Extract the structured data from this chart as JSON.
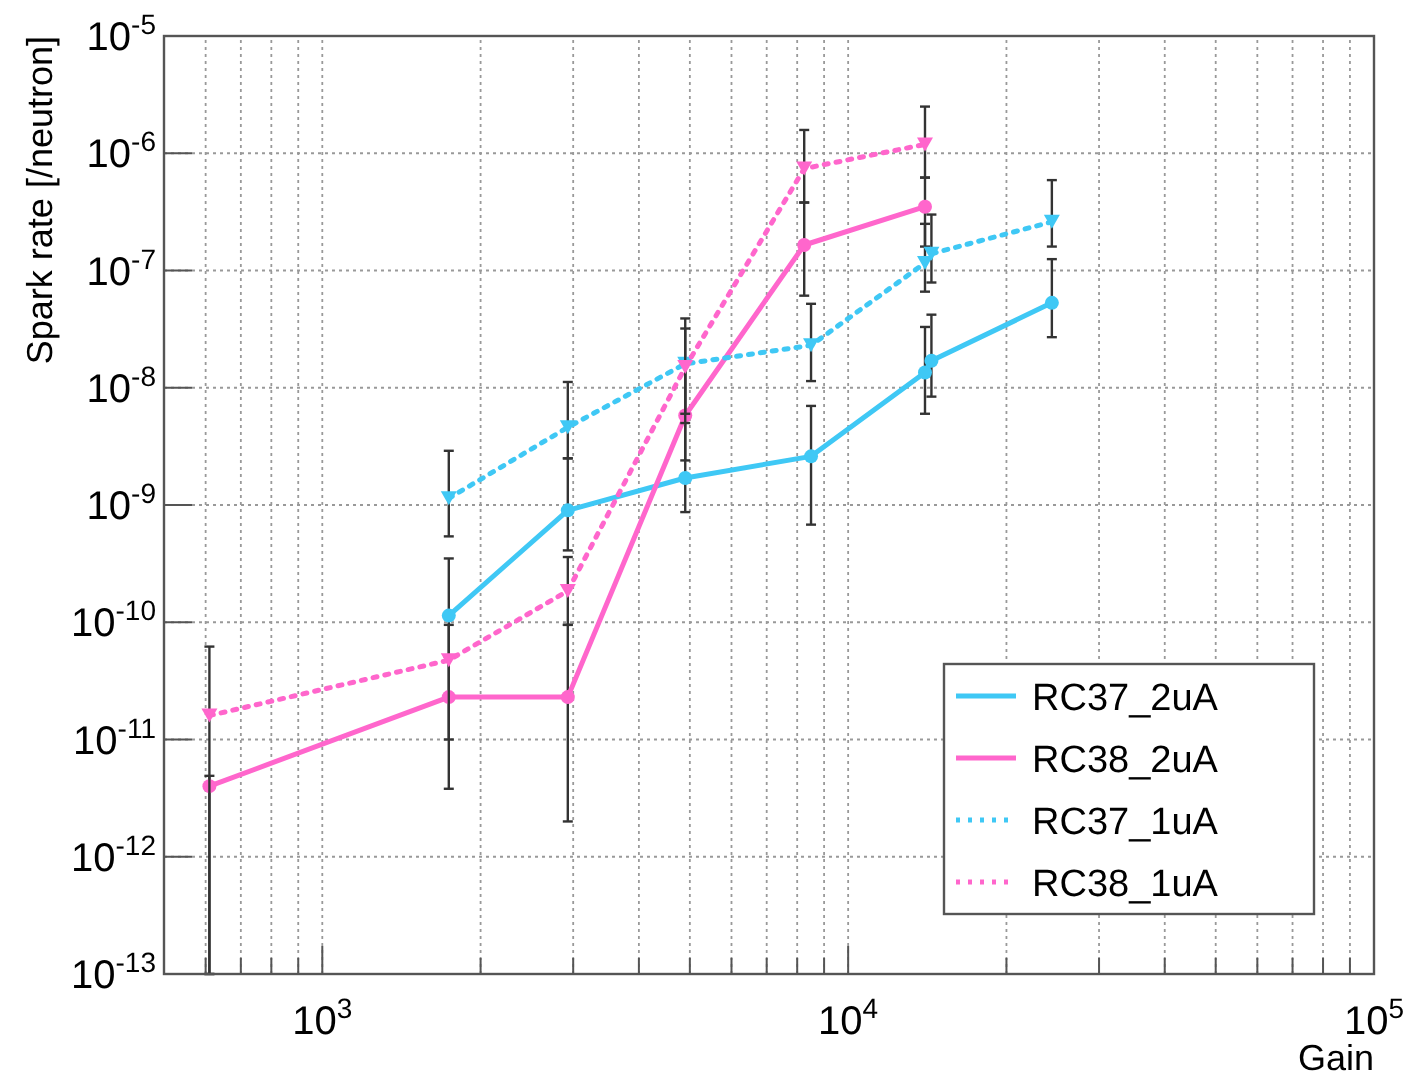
{
  "chart_data": {
    "type": "line",
    "xlabel": "Gain",
    "ylabel": "Spark rate [/neutron]",
    "log": "xy",
    "grid": true,
    "legend": "bottom right",
    "xlim": [
      500,
      100000
    ],
    "ylim": [
      1e-13,
      1e-05
    ],
    "xticks": [
      {
        "value": 600,
        "label": null
      },
      {
        "value": 700,
        "label": null
      },
      {
        "value": 800,
        "label": null
      },
      {
        "value": 900,
        "label": null
      },
      {
        "value": 1000,
        "label": "10$^{3}$"
      },
      {
        "value": 2000,
        "label": null
      },
      {
        "value": 3000,
        "label": null
      },
      {
        "value": 4000,
        "label": null
      },
      {
        "value": 5000,
        "label": null
      },
      {
        "value": 6000,
        "label": null
      },
      {
        "value": 7000,
        "label": null
      },
      {
        "value": 8000,
        "label": null
      },
      {
        "value": 9000,
        "label": null
      },
      {
        "value": 10000,
        "label": "10$^{4}$"
      },
      {
        "value": 20000,
        "label": null
      },
      {
        "value": 30000,
        "label": null
      },
      {
        "value": 40000,
        "label": null
      },
      {
        "value": 50000,
        "label": null
      },
      {
        "value": 60000,
        "label": null
      },
      {
        "value": 70000,
        "label": null
      },
      {
        "value": 80000,
        "label": null
      },
      {
        "value": 90000,
        "label": null
      },
      {
        "value": 100000,
        "label": "10$^{5}$"
      }
    ],
    "yticks": [
      {
        "value": 1e-13,
        "label": "10$^{-13}$"
      },
      {
        "value": 1e-12,
        "label": "10$^{-12}$"
      },
      {
        "value": 1e-11,
        "label": "10$^{-11}$"
      },
      {
        "value": 1e-10,
        "label": "10$^{-10}$"
      },
      {
        "value": 1e-09,
        "label": "10$^{-9}$"
      },
      {
        "value": 1e-08,
        "label": "10$^{-8}$"
      },
      {
        "value": 1e-07,
        "label": "10$^{-7}$"
      },
      {
        "value": 1e-06,
        "label": "10$^{-6}$"
      },
      {
        "value": 1e-05,
        "label": "10$^{-5}$"
      }
    ],
    "series": [
      {
        "name": "RC37_2uA",
        "color": "#3fc8f5",
        "line_style": "solid",
        "marker": "circle",
        "x": [
          1740,
          2930,
          4900,
          8500,
          14000,
          14400,
          24400
        ],
        "values": [
          1.14e-10,
          9e-10,
          1.7e-09,
          2.6e-09,
          1.35e-08,
          1.7e-08,
          5.3e-08
        ],
        "errors": [
          [
            5.1e-11,
            3.5e-10
          ],
          [
            4.1e-10,
            2.5e-09
          ],
          [
            8.7e-10,
            6e-09
          ],
          [
            6.8e-10,
            7e-09
          ],
          [
            6e-09,
            3.3e-08
          ],
          [
            8.4e-09,
            4.2e-08
          ],
          [
            2.7e-08,
            1.25e-07
          ]
        ]
      },
      {
        "name": "RC38_2uA",
        "color": "#ff66cc",
        "line_style": "solid",
        "marker": "circle",
        "x": [
          610,
          1740,
          2930,
          4900,
          8250,
          14000
        ],
        "values": [
          4e-12,
          2.3e-11,
          2.3e-11,
          5.8e-09,
          1.65e-07,
          3.5e-07
        ],
        "errors": [
          [
            1e-13,
            4.9e-12
          ],
          [
            3.8e-12,
            5.1e-11
          ],
          [
            2e-12,
            9.5e-11
          ],
          [
            2.4e-09,
            1.6e-08
          ],
          [
            6.1e-08,
            3.8e-07
          ],
          [
            1.6e-07,
            6.2e-07
          ]
        ]
      },
      {
        "name": "RC37_1uA",
        "color": "#3fc8f5",
        "line_style": "dotted",
        "marker": "triangle",
        "x": [
          1740,
          2930,
          4900,
          8500,
          14000,
          14400,
          24400
        ],
        "values": [
          1.14e-09,
          4.6e-09,
          1.6e-08,
          2.3e-08,
          1.16e-07,
          1.39e-07,
          2.6e-07
        ],
        "errors": [
          [
            5.4e-10,
            2.9e-09
          ],
          [
            2.5e-09,
            1.12e-08
          ],
          [
            6e-09,
            3.9e-08
          ],
          [
            1.14e-08,
            5.2e-08
          ],
          [
            6.6e-08,
            2.5e-07
          ],
          [
            7.9e-08,
            3e-07
          ],
          [
            1.6e-07,
            5.9e-07
          ]
        ]
      },
      {
        "name": "RC38_1uA",
        "color": "#ff66cc",
        "line_style": "dotted",
        "marker": "triangle",
        "x": [
          610,
          1740,
          2930,
          4900,
          8250,
          14000
        ],
        "values": [
          1.6e-11,
          4.75e-11,
          1.85e-10,
          1.5e-08,
          7.4e-07,
          1.19e-06
        ],
        "errors": [
          [
            1e-13,
            6.2e-11
          ],
          [
            1e-11,
            9.5e-11
          ],
          [
            9.5e-11,
            3.6e-10
          ],
          [
            5e-09,
            3.2e-08
          ],
          [
            3.8e-07,
            1.58e-06
          ],
          [
            6.2e-07,
            2.5e-06
          ]
        ]
      }
    ]
  }
}
